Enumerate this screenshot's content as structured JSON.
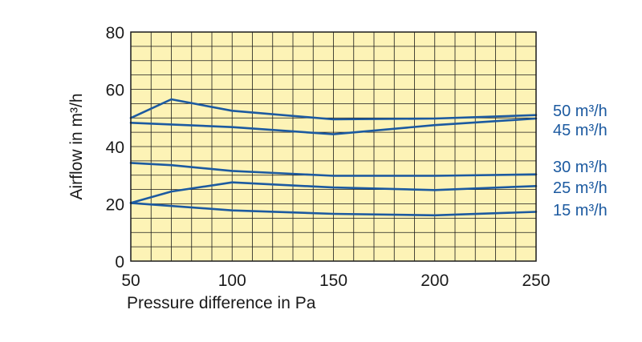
{
  "chart_data": {
    "type": "line",
    "xlabel": "Pressure difference in Pa",
    "ylabel": "Airflow in m³/h",
    "xlim": [
      50,
      250
    ],
    "ylim": [
      0,
      80
    ],
    "x_ticks": [
      50,
      100,
      150,
      200,
      250
    ],
    "y_ticks": [
      0,
      20,
      40,
      60,
      80
    ],
    "x_tick_labels": [
      "50",
      "100",
      "150",
      "200",
      "250"
    ],
    "y_tick_labels": [
      "0",
      "20",
      "40",
      "60",
      "80"
    ],
    "grid": true,
    "legend": "right",
    "colors": {
      "plot_background": "#fdf3b6",
      "grid": "#1a1a1a",
      "line": "#1c5aa0",
      "axis_text": "#1a1a1a"
    },
    "series": [
      {
        "name": "50 m³/h",
        "x": [
          50,
          70,
          100,
          150,
          200,
          250
        ],
        "y": [
          50,
          56.5,
          52.5,
          49.5,
          49.8,
          51
        ]
      },
      {
        "name": "45 m³/h",
        "x": [
          50,
          100,
          150,
          200,
          250
        ],
        "y": [
          48.3,
          46.8,
          44.3,
          47.5,
          49.8
        ]
      },
      {
        "name": "30 m³/h",
        "x": [
          50,
          70,
          100,
          150,
          200,
          250
        ],
        "y": [
          34.3,
          33.5,
          31.5,
          29.8,
          29.8,
          30.3
        ]
      },
      {
        "name": "25 m³/h",
        "x": [
          50,
          70,
          100,
          150,
          200,
          250
        ],
        "y": [
          20.3,
          24.3,
          27.5,
          25.7,
          24.8,
          26.2
        ]
      },
      {
        "name": "15 m³/h",
        "x": [
          50,
          100,
          150,
          200,
          250
        ],
        "y": [
          20.3,
          17.7,
          16.5,
          16,
          17.2
        ]
      }
    ]
  }
}
